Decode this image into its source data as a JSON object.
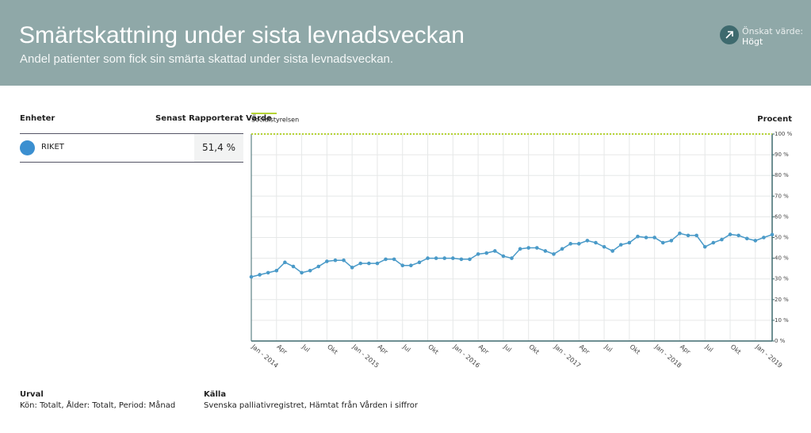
{
  "header": {
    "title": "Smärtskattning under sista levnadsveckan",
    "subtitle": "Andel patienter som fick sin smärta skattad under sista levnadsveckan.",
    "desired_label": "Önskat värde:",
    "desired_value": "Högt"
  },
  "table": {
    "columns": [
      "Enheter",
      "Senast Rapporterat Värde"
    ],
    "rows": [
      [
        "RIKET",
        "51,4 %"
      ]
    ]
  },
  "footer": {
    "selection_title": "Urval",
    "selection": "Kön: Totalt, Ålder: Totalt, Period: Månad",
    "source_title": "Källa",
    "source": "Svenska palliativregistret, Hämtat från Vården i siffror"
  },
  "chart_data": {
    "type": "line",
    "y_label": "Procent",
    "categories": [
      "Jan - 2014",
      null,
      null,
      "Apr",
      null,
      null,
      "Jul",
      null,
      null,
      "Okt",
      null,
      null,
      "Jan - 2015",
      null,
      null,
      "Apr",
      null,
      null,
      "Jul",
      null,
      null,
      "Okt",
      null,
      null,
      "Jan - 2016",
      null,
      null,
      "Apr",
      null,
      null,
      "Jul",
      null,
      null,
      "Okt",
      null,
      null,
      "Jan - 2017",
      null,
      null,
      "Apr",
      null,
      null,
      "Jul",
      null,
      null,
      "Okt",
      null,
      null,
      "Jan - 2018",
      null,
      null,
      "Apr",
      null,
      null,
      "Jul",
      null,
      null,
      "Okt",
      null,
      null,
      "Jan - 2019",
      null,
      null
    ],
    "series": [
      {
        "name": "RIKET",
        "color": "#4a9ac8",
        "values": [
          31,
          32,
          33,
          34,
          38,
          36,
          33,
          34,
          36,
          38.5,
          39,
          39,
          35.5,
          37.5,
          37.5,
          37.5,
          39.5,
          39.5,
          36.5,
          36.5,
          38,
          40,
          40,
          40,
          40,
          39.5,
          39.5,
          42,
          42.5,
          43.5,
          41,
          40,
          44.5,
          45,
          45,
          43.5,
          42,
          44.5,
          47,
          47,
          48.5,
          47.5,
          45.5,
          43.5,
          46.5,
          47.5,
          50.5,
          50,
          50,
          47.5,
          48.5,
          52,
          51,
          51,
          45.5,
          47.5,
          49,
          51.5,
          51,
          49.5,
          48.5,
          50,
          51.4
        ]
      }
    ],
    "target": {
      "name": "Socialstyrelsen",
      "value": 100,
      "color": "#b5d334"
    },
    "ylim": [
      0,
      100
    ],
    "yticks": [
      {
        "value": 0,
        "label": "0 %"
      },
      {
        "value": 10,
        "label": "10 %"
      },
      {
        "value": 20,
        "label": "20 %"
      },
      {
        "value": 30,
        "label": "30 %"
      },
      {
        "value": 40,
        "label": "40 %"
      },
      {
        "value": 50,
        "label": "50 %"
      },
      {
        "value": 60,
        "label": "60 %"
      },
      {
        "value": 70,
        "label": "70 %"
      },
      {
        "value": 80,
        "label": "80 %"
      },
      {
        "value": 90,
        "label": "90 %"
      },
      {
        "value": 100,
        "label": "100 %"
      }
    ],
    "grid": true
  }
}
